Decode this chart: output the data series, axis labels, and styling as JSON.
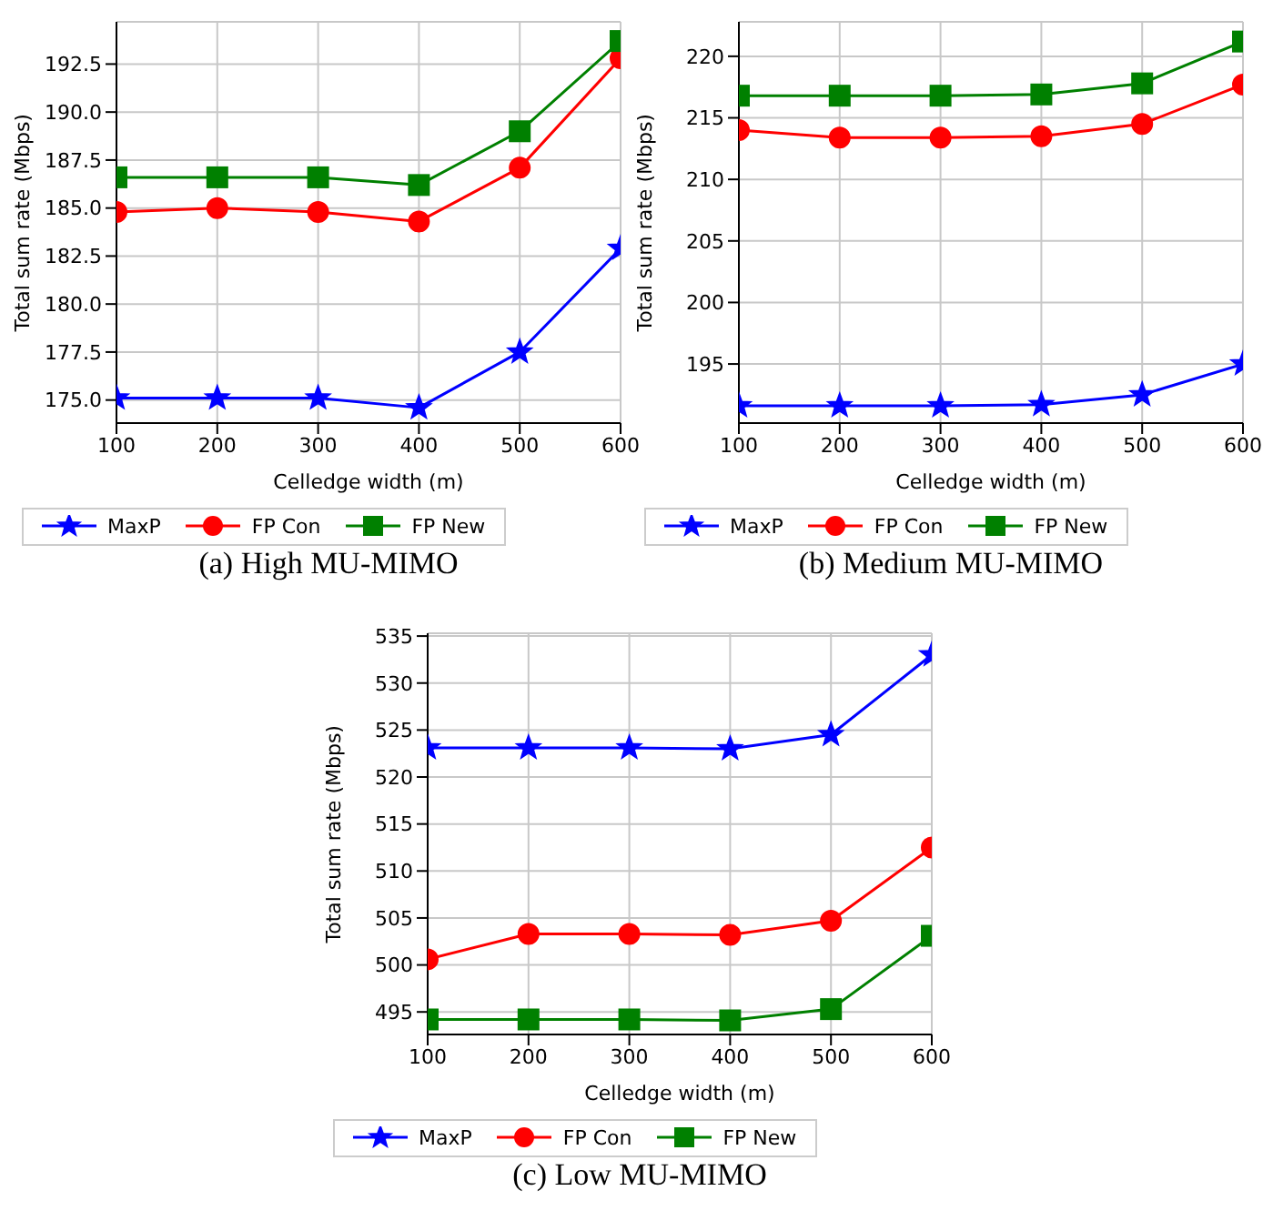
{
  "chart_data": [
    {
      "type": "line",
      "title": "(a) High MU-MIMO",
      "xlabel": "Celledge width (m)",
      "ylabel": "Total sum rate (Mbps)",
      "x": [
        100,
        200,
        300,
        400,
        500,
        600
      ],
      "xlim": [
        100,
        600
      ],
      "xticks": [
        100,
        200,
        300,
        400,
        500,
        600
      ],
      "ylim": [
        173.8,
        194.7
      ],
      "yticks": [
        {
          "value": 175,
          "label": "175.0"
        },
        {
          "value": 177.5,
          "label": "177.5"
        },
        {
          "value": 180,
          "label": "180.0"
        },
        {
          "value": 182.5,
          "label": "182.5"
        },
        {
          "value": 185,
          "label": "185.0"
        },
        {
          "value": 187.5,
          "label": "187.5"
        },
        {
          "value": 190,
          "label": "190.0"
        },
        {
          "value": 192.5,
          "label": "192.5"
        }
      ],
      "grid": true,
      "legend": "bottom",
      "series": [
        {
          "name": "MaxP",
          "color": "#0000ff",
          "marker": "star",
          "values": [
            175.1,
            175.1,
            175.1,
            174.6,
            177.5,
            182.9
          ]
        },
        {
          "name": "FP Con",
          "color": "#ff0000",
          "marker": "circle",
          "values": [
            184.8,
            185.0,
            184.8,
            184.3,
            187.1,
            192.8
          ]
        },
        {
          "name": "FP New",
          "color": "#008000",
          "marker": "square",
          "values": [
            186.6,
            186.6,
            186.6,
            186.2,
            189.0,
            193.7
          ]
        }
      ]
    },
    {
      "type": "line",
      "title": "(b) Medium MU-MIMO",
      "xlabel": "Celledge width (m)",
      "ylabel": "Total sum rate (Mbps)",
      "x": [
        100,
        200,
        300,
        400,
        500,
        600
      ],
      "xlim": [
        100,
        600
      ],
      "xticks": [
        100,
        200,
        300,
        400,
        500,
        600
      ],
      "ylim": [
        190.2,
        222.8
      ],
      "yticks": [
        195,
        200,
        205,
        210,
        215,
        220
      ],
      "grid": true,
      "legend": "bottom",
      "series": [
        {
          "name": "MaxP",
          "color": "#0000ff",
          "marker": "star",
          "values": [
            191.6,
            191.6,
            191.6,
            191.7,
            192.5,
            195.0
          ]
        },
        {
          "name": "FP Con",
          "color": "#ff0000",
          "marker": "circle",
          "values": [
            214.0,
            213.4,
            213.4,
            213.5,
            214.5,
            217.7
          ]
        },
        {
          "name": "FP New",
          "color": "#008000",
          "marker": "square",
          "values": [
            216.8,
            216.8,
            216.8,
            216.9,
            217.8,
            221.2
          ]
        }
      ]
    },
    {
      "type": "line",
      "title": "(c) Low MU-MIMO",
      "xlabel": "Celledge width (m)",
      "ylabel": "Total sum rate (Mbps)",
      "x": [
        100,
        200,
        300,
        400,
        500,
        600
      ],
      "xlim": [
        100,
        600
      ],
      "xticks": [
        100,
        200,
        300,
        400,
        500,
        600
      ],
      "ylim": [
        492.6,
        535.3
      ],
      "yticks": [
        495,
        500,
        505,
        510,
        515,
        520,
        525,
        530,
        535
      ],
      "grid": true,
      "legend": "bottom",
      "series": [
        {
          "name": "MaxP",
          "color": "#0000ff",
          "marker": "star",
          "values": [
            523.1,
            523.1,
            523.1,
            523.0,
            524.5,
            533.0
          ]
        },
        {
          "name": "FP Con",
          "color": "#ff0000",
          "marker": "circle",
          "values": [
            500.6,
            503.3,
            503.3,
            503.2,
            504.7,
            512.5
          ]
        },
        {
          "name": "FP New",
          "color": "#008000",
          "marker": "square",
          "values": [
            494.2,
            494.2,
            494.2,
            494.1,
            495.3,
            503.1
          ]
        }
      ]
    }
  ]
}
